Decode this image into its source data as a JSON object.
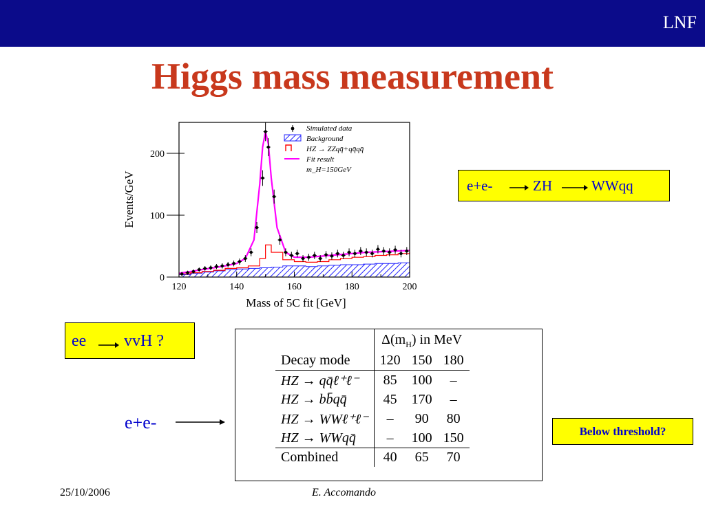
{
  "header": {
    "org": "LNF"
  },
  "slide": {
    "title": "Higgs mass measurement"
  },
  "chart_data": {
    "type": "histogram",
    "title": "",
    "xlabel": "Mass of 5C fit [GeV]",
    "ylabel": "Events/GeV",
    "xlim": [
      120,
      200
    ],
    "ylim": [
      0,
      250
    ],
    "xticks": [
      120,
      140,
      160,
      180,
      200
    ],
    "yticks": [
      0,
      100,
      200
    ],
    "legend_position": "top-right",
    "legend": [
      {
        "label": "Simulated data",
        "color": "#000000"
      },
      {
        "label": "Background",
        "color": "#2222ff"
      },
      {
        "label": "HZ → ZZqq̄+qq̄qq̄",
        "color": "#ff0000"
      },
      {
        "label": "Fit result",
        "color": "#ff00ff"
      },
      {
        "label": "m_H=150GeV",
        "color": "#000000"
      }
    ],
    "series": [
      {
        "name": "Simulated data",
        "x": [
          121,
          123,
          125,
          127,
          129,
          131,
          133,
          135,
          137,
          139,
          141,
          143,
          145,
          147,
          149,
          150,
          151,
          153,
          155,
          157,
          159,
          161,
          163,
          165,
          167,
          169,
          171,
          173,
          175,
          177,
          179,
          181,
          183,
          185,
          187,
          189,
          191,
          193,
          195,
          197,
          199
        ],
        "y": [
          5,
          7,
          9,
          12,
          14,
          15,
          17,
          18,
          20,
          22,
          25,
          30,
          40,
          80,
          160,
          235,
          210,
          130,
          60,
          40,
          35,
          38,
          30,
          32,
          35,
          30,
          36,
          34,
          38,
          35,
          40,
          38,
          42,
          40,
          38,
          45,
          42,
          40,
          44,
          38,
          42
        ]
      },
      {
        "name": "Background",
        "x": [
          120,
          124,
          128,
          132,
          136,
          140,
          144,
          148,
          152,
          156,
          160,
          164,
          168,
          172,
          176,
          180,
          184,
          188,
          192,
          196,
          200
        ],
        "y": [
          4,
          6,
          8,
          10,
          12,
          13,
          14,
          15,
          16,
          18,
          18,
          17,
          18,
          19,
          20,
          20,
          21,
          22,
          22,
          23,
          24
        ]
      },
      {
        "name": "HZ → ZZqq̄+qq̄qq̄",
        "x": [
          120,
          124,
          128,
          132,
          136,
          140,
          144,
          148,
          150,
          152,
          156,
          160,
          164,
          168,
          172,
          176,
          180,
          184,
          188,
          192,
          196,
          200
        ],
        "y": [
          5,
          7,
          9,
          11,
          14,
          15,
          18,
          30,
          52,
          40,
          28,
          25,
          24,
          25,
          28,
          30,
          32,
          33,
          35,
          36,
          38,
          40
        ]
      },
      {
        "name": "Fit result",
        "x": [
          120,
          124,
          128,
          132,
          136,
          140,
          143,
          146,
          148,
          149,
          150,
          151,
          152,
          154,
          157,
          160,
          165,
          170,
          175,
          180,
          185,
          190,
          195,
          200
        ],
        "y": [
          6,
          9,
          12,
          15,
          18,
          22,
          30,
          60,
          150,
          210,
          235,
          215,
          160,
          80,
          40,
          32,
          32,
          34,
          36,
          38,
          40,
          41,
          42,
          43
        ]
      }
    ]
  },
  "process_box": {
    "lhs": "e+e-",
    "mid": "ZH",
    "rhs": "WWqq"
  },
  "vvh_box": {
    "lhs": "ee",
    "rhs": "vvH ?"
  },
  "table": {
    "header_quantity": "Δ(m",
    "header_sub": "H",
    "header_unit": ") in MeV",
    "col_label": "Decay mode",
    "columns": [
      "120",
      "150",
      "180"
    ],
    "rows": [
      {
        "mode": "HZ → qq̄ℓ⁺ℓ⁻",
        "values": [
          "85",
          "100",
          "–"
        ]
      },
      {
        "mode": "HZ → bb̄qq̄",
        "values": [
          "45",
          "170",
          "–"
        ]
      },
      {
        "mode": "HZ → WWℓ⁺ℓ⁻",
        "values": [
          "–",
          "90",
          "80"
        ]
      },
      {
        "mode": "HZ → WWqq̄",
        "values": [
          "–",
          "100",
          "150"
        ]
      }
    ],
    "combined": {
      "mode": "Combined",
      "values": [
        "40",
        "65",
        "70"
      ]
    }
  },
  "ee_label": "e+e-",
  "threshold_box": "Below threshold?",
  "footer": {
    "date": "25/10/2006",
    "author": "E. Accomando"
  }
}
